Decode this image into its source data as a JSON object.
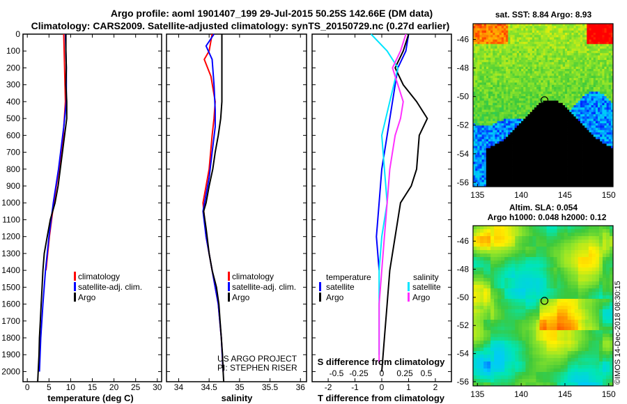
{
  "title_line1": "Argo profile: aoml 1901407_199 29-Jul-2015 50.25S 142.66E (DM data)",
  "title_line2": "Climatology: CARS2009. Satellite-adjusted climatology: synTS_20150729.nc (0.27d earlier)",
  "credit_line1": "US ARGO PROJECT",
  "credit_line2": "PI: STEPHEN RISER",
  "watermark": "©IMOS 14-Dec-2018 08:30:15",
  "colors": {
    "climatology": "#ff0000",
    "satellite": "#0000ff",
    "argo": "#000000",
    "salinity_sat": "#00e5ff",
    "salinity_argo": "#ff30ff"
  },
  "chart_data": [
    {
      "type": "line",
      "panel": "temperature",
      "xlabel": "temperature (deg C)",
      "ylabel": "",
      "xlim": [
        -1,
        31
      ],
      "ylim": [
        2060,
        0
      ],
      "xticks": [
        0,
        5,
        10,
        15,
        20,
        25,
        30
      ],
      "yticks": [
        0,
        100,
        200,
        300,
        400,
        500,
        600,
        700,
        800,
        900,
        1000,
        1100,
        1200,
        1300,
        1400,
        1500,
        1600,
        1700,
        1800,
        1900,
        2000
      ],
      "ytick_labels": [
        "0",
        "100",
        "200",
        "300",
        "400",
        "500",
        "600",
        "700",
        "800",
        "900",
        "1000",
        "1100",
        "1200",
        "1300",
        "1400",
        "1500",
        "1600",
        "1700",
        "1800",
        "1900",
        "2000"
      ],
      "legend": [
        "climatology",
        "satellite-adj. clim.",
        "Argo"
      ],
      "series": [
        {
          "name": "climatology",
          "color": "#ff0000",
          "points": [
            [
              8.4,
              0
            ],
            [
              8.6,
              200
            ],
            [
              8.8,
              400
            ],
            [
              8.3,
              600
            ],
            [
              7.3,
              800
            ],
            [
              6.1,
              1000
            ],
            [
              5.1,
              1200
            ],
            [
              4.3,
              1400
            ]
          ]
        },
        {
          "name": "satellite-adj. clim.",
          "color": "#0000ff",
          "points": [
            [
              8.8,
              0
            ],
            [
              9.0,
              200
            ],
            [
              9.0,
              400
            ],
            [
              8.4,
              550
            ],
            [
              7.2,
              800
            ],
            [
              6.0,
              1000
            ],
            [
              5.0,
              1200
            ],
            [
              4.2,
              1400
            ],
            [
              3.6,
              1600
            ],
            [
              3.1,
              1800
            ],
            [
              2.8,
              2000
            ]
          ]
        },
        {
          "name": "Argo",
          "color": "#000000",
          "points": [
            [
              8.9,
              0
            ],
            [
              8.9,
              100
            ],
            [
              9.0,
              200
            ],
            [
              8.9,
              300
            ],
            [
              9.1,
              400
            ],
            [
              9.1,
              500
            ],
            [
              8.6,
              600
            ],
            [
              8.1,
              700
            ],
            [
              7.6,
              800
            ],
            [
              7.1,
              900
            ],
            [
              6.4,
              1000
            ],
            [
              5.3,
              1100
            ],
            [
              4.6,
              1200
            ],
            [
              3.9,
              1300
            ],
            [
              3.6,
              1400
            ],
            [
              3.4,
              1500
            ],
            [
              3.2,
              1600
            ],
            [
              3.0,
              1700
            ],
            [
              2.8,
              1800
            ],
            [
              2.7,
              1900
            ],
            [
              2.5,
              2000
            ],
            [
              2.4,
              2060
            ]
          ]
        }
      ]
    },
    {
      "type": "line",
      "panel": "salinity",
      "xlabel": "salinity",
      "ylabel": "",
      "xlim": [
        33.8,
        36.1
      ],
      "ylim": [
        2060,
        0
      ],
      "xticks": [
        34,
        34.5,
        35,
        35.5,
        36
      ],
      "xtick_labels": [
        "34",
        "34.5",
        "35",
        "35.5",
        "36"
      ],
      "legend": [
        "climatology",
        "satellite-adj. clim.",
        "Argo"
      ],
      "series": [
        {
          "name": "climatology",
          "color": "#ff0000",
          "points": [
            [
              34.55,
              0
            ],
            [
              34.5,
              100
            ],
            [
              34.42,
              150
            ],
            [
              34.53,
              250
            ],
            [
              34.6,
              400
            ],
            [
              34.58,
              500
            ],
            [
              34.55,
              600
            ],
            [
              34.5,
              800
            ],
            [
              34.45,
              900
            ],
            [
              34.4,
              1000
            ],
            [
              34.45,
              1200
            ],
            [
              34.55,
              1400
            ],
            [
              34.65,
              1600
            ],
            [
              34.7,
              1800
            ],
            [
              34.73,
              2000
            ]
          ]
        },
        {
          "name": "satellite-adj. clim.",
          "color": "#0000ff",
          "points": [
            [
              34.58,
              0
            ],
            [
              34.45,
              70
            ],
            [
              34.55,
              150
            ],
            [
              34.58,
              300
            ],
            [
              34.6,
              450
            ],
            [
              34.6,
              550
            ],
            [
              34.55,
              700
            ],
            [
              34.5,
              850
            ],
            [
              34.45,
              950
            ],
            [
              34.4,
              1050
            ],
            [
              34.45,
              1200
            ],
            [
              34.55,
              1400
            ],
            [
              34.65,
              1600
            ],
            [
              34.7,
              1800
            ],
            [
              34.73,
              2000
            ]
          ]
        },
        {
          "name": "Argo",
          "color": "#000000",
          "points": [
            [
              34.71,
              0
            ],
            [
              34.71,
              200
            ],
            [
              34.71,
              400
            ],
            [
              34.69,
              500
            ],
            [
              34.65,
              600
            ],
            [
              34.6,
              700
            ],
            [
              34.56,
              800
            ],
            [
              34.5,
              900
            ],
            [
              34.45,
              1000
            ],
            [
              34.41,
              1050
            ],
            [
              34.45,
              1150
            ],
            [
              34.5,
              1300
            ],
            [
              34.55,
              1400
            ],
            [
              34.62,
              1500
            ],
            [
              34.66,
              1600
            ],
            [
              34.68,
              1700
            ],
            [
              34.7,
              1800
            ],
            [
              34.72,
              1900
            ],
            [
              34.73,
              2000
            ],
            [
              34.74,
              2060
            ]
          ]
        }
      ]
    },
    {
      "type": "line",
      "panel": "difference",
      "xlabel": "T difference from climatology",
      "ylabel": "",
      "xlim": [
        -2.6,
        2.6
      ],
      "ylim": [
        2060,
        0
      ],
      "xticks": [
        -2,
        -1,
        0,
        1,
        2
      ],
      "xtick_labels": [
        "-2",
        "-1",
        "0",
        "1",
        "2"
      ],
      "secondary_axis": {
        "label": "S difference from climatology",
        "ticks": [
          "-0.5",
          "-0.25",
          "0",
          "0.25",
          "0.5"
        ],
        "tick_values": [
          -2,
          -1,
          0,
          1,
          2
        ]
      },
      "legend_left_title": "temperature",
      "legend_right_title": "salinity",
      "legend_left": [
        "satellite",
        "Argo"
      ],
      "legend_right": [
        "satellite",
        "Argo"
      ],
      "series": [
        {
          "name": "T satellite",
          "color": "#0000ff",
          "points": [
            [
              1.0,
              0
            ],
            [
              0.9,
              100
            ],
            [
              0.6,
              200
            ],
            [
              0.4,
              400
            ],
            [
              0.2,
              600
            ],
            [
              0.0,
              800
            ],
            [
              -0.1,
              1000
            ],
            [
              -0.2,
              1200
            ],
            [
              -0.1,
              1400
            ]
          ]
        },
        {
          "name": "T Argo",
          "color": "#000000",
          "points": [
            [
              1.0,
              0
            ],
            [
              0.8,
              100
            ],
            [
              0.5,
              200
            ],
            [
              0.8,
              300
            ],
            [
              1.3,
              400
            ],
            [
              1.7,
              500
            ],
            [
              1.4,
              600
            ],
            [
              1.3,
              800
            ],
            [
              1.1,
              900
            ],
            [
              0.7,
              1000
            ],
            [
              0.5,
              1200
            ],
            [
              0.3,
              1400
            ],
            [
              0.2,
              1600
            ],
            [
              0.1,
              1800
            ],
            [
              0.0,
              2000
            ]
          ]
        },
        {
          "name": "S satellite",
          "color": "#00e5ff",
          "points": [
            [
              -0.4,
              0
            ],
            [
              0.2,
              100
            ],
            [
              0.6,
              200
            ],
            [
              0.3,
              400
            ],
            [
              0.0,
              600
            ],
            [
              0.1,
              800
            ],
            [
              0.2,
              1000
            ],
            [
              0.0,
              1200
            ],
            [
              -0.1,
              1400
            ],
            [
              -0.1,
              1600
            ],
            [
              -0.1,
              1800
            ],
            [
              -0.1,
              1900
            ]
          ]
        },
        {
          "name": "S Argo",
          "color": "#ff30ff",
          "points": [
            [
              0.9,
              0
            ],
            [
              0.7,
              100
            ],
            [
              0.4,
              200
            ],
            [
              0.6,
              300
            ],
            [
              0.8,
              400
            ],
            [
              0.7,
              500
            ],
            [
              0.5,
              600
            ],
            [
              0.3,
              800
            ],
            [
              0.2,
              1000
            ],
            [
              0.1,
              1200
            ],
            [
              0.0,
              1400
            ],
            [
              -0.1,
              1600
            ],
            [
              -0.1,
              1800
            ],
            [
              -0.1,
              1950
            ]
          ]
        }
      ]
    },
    {
      "type": "heatmap",
      "panel": "sst_map",
      "title": "sat. SST: 8.84 Argo: 8.93",
      "xticks": [
        135,
        140,
        145,
        150
      ],
      "yticks": [
        -46,
        -48,
        -50,
        -52,
        -54,
        -56
      ],
      "xlim": [
        134.5,
        150.5
      ],
      "ylim": [
        -56.3,
        -44.9
      ],
      "marker": [
        142.66,
        -50.25
      ]
    },
    {
      "type": "heatmap",
      "panel": "sla_map",
      "title": "Altim. SLA: 0.054",
      "subtitle": "Argo h1000: 0.048 h2000: 0.12",
      "xticks": [
        135,
        140,
        145,
        150
      ],
      "yticks": [
        -46,
        -48,
        -50,
        -52,
        -54,
        -56
      ],
      "xlim": [
        134.5,
        150.5
      ],
      "ylim": [
        -56.3,
        -44.9
      ],
      "marker": [
        142.66,
        -50.25
      ]
    }
  ]
}
